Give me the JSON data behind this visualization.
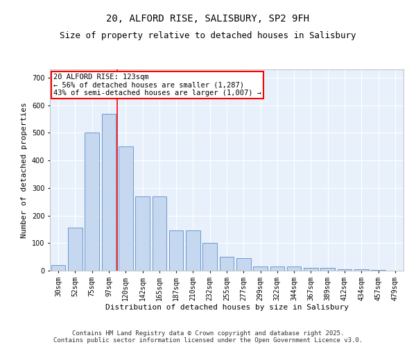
{
  "title": "20, ALFORD RISE, SALISBURY, SP2 9FH",
  "subtitle": "Size of property relative to detached houses in Salisbury",
  "xlabel": "Distribution of detached houses by size in Salisbury",
  "ylabel": "Number of detached properties",
  "categories": [
    "30sqm",
    "52sqm",
    "75sqm",
    "97sqm",
    "120sqm",
    "142sqm",
    "165sqm",
    "187sqm",
    "210sqm",
    "232sqm",
    "255sqm",
    "277sqm",
    "299sqm",
    "322sqm",
    "344sqm",
    "367sqm",
    "389sqm",
    "412sqm",
    "434sqm",
    "457sqm",
    "479sqm"
  ],
  "values": [
    20,
    155,
    500,
    570,
    450,
    270,
    270,
    145,
    145,
    100,
    50,
    45,
    15,
    15,
    15,
    10,
    10,
    5,
    5,
    3,
    1
  ],
  "bar_color": "#c5d8f0",
  "bar_edge_color": "#5b8dc8",
  "bg_color": "#e8f0fb",
  "grid_color": "#ffffff",
  "vline_color": "red",
  "vline_xindex": 4,
  "annotation_text": "20 ALFORD RISE: 123sqm\n← 56% of detached houses are smaller (1,287)\n43% of semi-detached houses are larger (1,007) →",
  "annotation_box_color": "red",
  "ylim": [
    0,
    730
  ],
  "yticks": [
    0,
    100,
    200,
    300,
    400,
    500,
    600,
    700
  ],
  "footer": "Contains HM Land Registry data © Crown copyright and database right 2025.\nContains public sector information licensed under the Open Government Licence v3.0.",
  "title_fontsize": 10,
  "subtitle_fontsize": 9,
  "xlabel_fontsize": 8,
  "ylabel_fontsize": 8,
  "tick_fontsize": 7,
  "footer_fontsize": 6.5,
  "annotation_fontsize": 7.5
}
